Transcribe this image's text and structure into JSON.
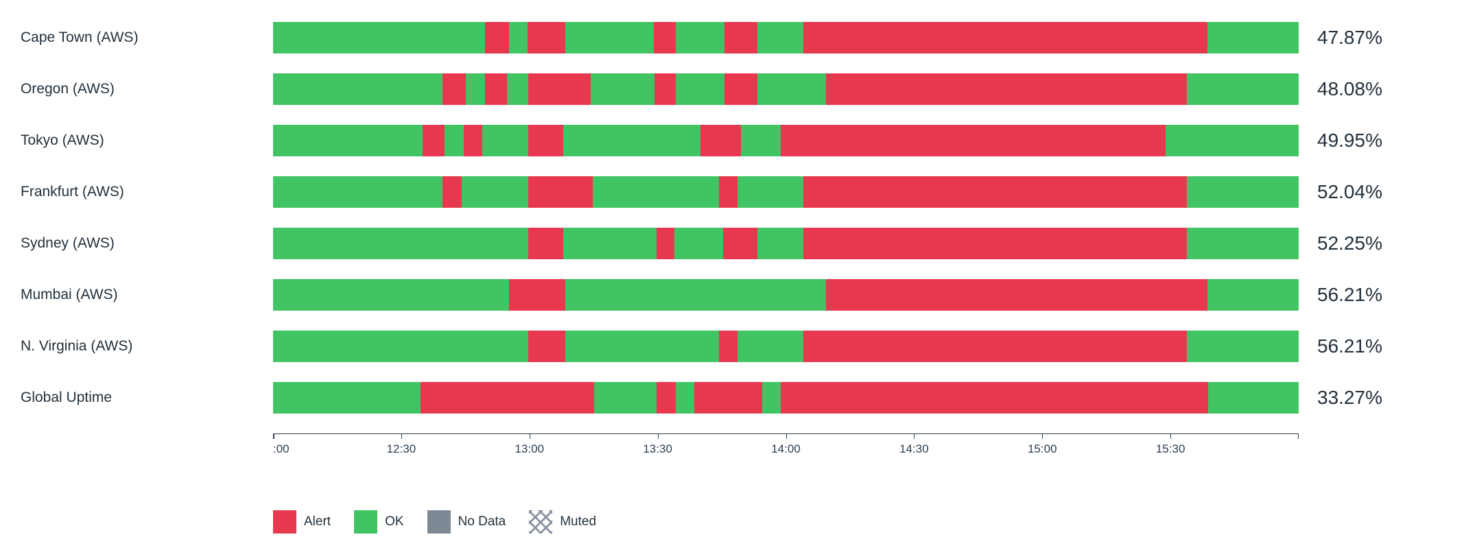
{
  "page": {
    "background": "#ffffff"
  },
  "chart_data": {
    "type": "bar",
    "variant": "horizontal-status-timeline",
    "title": "",
    "x_axis": {
      "start": "12:00",
      "end": "16:00",
      "ticks": [
        {
          "label": ":00",
          "pos_pct": 0
        },
        {
          "label": "12:30",
          "pos_pct": 12.5
        },
        {
          "label": "13:00",
          "pos_pct": 25
        },
        {
          "label": "13:30",
          "pos_pct": 37.5
        },
        {
          "label": "14:00",
          "pos_pct": 50
        },
        {
          "label": "14:30",
          "pos_pct": 62.5
        },
        {
          "label": "15:00",
          "pos_pct": 75
        },
        {
          "label": "15:30",
          "pos_pct": 87.5
        },
        {
          "label": "",
          "pos_pct": 100
        }
      ]
    },
    "rows": [
      {
        "label": "Cape Town (AWS)",
        "uptime": "47.87%",
        "segments": [
          {
            "status": "ok",
            "width_pct": 20.7
          },
          {
            "status": "alert",
            "width_pct": 2.3
          },
          {
            "status": "ok",
            "width_pct": 1.8
          },
          {
            "status": "alert",
            "width_pct": 3.7
          },
          {
            "status": "ok",
            "width_pct": 8.6
          },
          {
            "status": "alert",
            "width_pct": 2.2
          },
          {
            "status": "ok",
            "width_pct": 4.7
          },
          {
            "status": "alert",
            "width_pct": 3.2
          },
          {
            "status": "ok",
            "width_pct": 4.5
          },
          {
            "status": "alert",
            "width_pct": 39.4
          },
          {
            "status": "ok",
            "width_pct": 8.9
          }
        ]
      },
      {
        "label": "Oregon (AWS)",
        "uptime": "48.08%",
        "segments": [
          {
            "status": "ok",
            "width_pct": 16.5
          },
          {
            "status": "alert",
            "width_pct": 2.3
          },
          {
            "status": "ok",
            "width_pct": 1.9
          },
          {
            "status": "alert",
            "width_pct": 2.1
          },
          {
            "status": "ok",
            "width_pct": 2.1
          },
          {
            "status": "alert",
            "width_pct": 6.1
          },
          {
            "status": "ok",
            "width_pct": 6.2
          },
          {
            "status": "alert",
            "width_pct": 2.1
          },
          {
            "status": "ok",
            "width_pct": 4.7
          },
          {
            "status": "alert",
            "width_pct": 3.2
          },
          {
            "status": "ok",
            "width_pct": 6.7
          },
          {
            "status": "alert",
            "width_pct": 35.2
          },
          {
            "status": "ok",
            "width_pct": 10.9
          }
        ]
      },
      {
        "label": "Tokyo (AWS)",
        "uptime": "49.95%",
        "segments": [
          {
            "status": "ok",
            "width_pct": 14.6
          },
          {
            "status": "alert",
            "width_pct": 2.1
          },
          {
            "status": "ok",
            "width_pct": 1.9
          },
          {
            "status": "alert",
            "width_pct": 1.8
          },
          {
            "status": "ok",
            "width_pct": 4.5
          },
          {
            "status": "alert",
            "width_pct": 3.4
          },
          {
            "status": "ok",
            "width_pct": 13.4
          },
          {
            "status": "alert",
            "width_pct": 3.9
          },
          {
            "status": "ok",
            "width_pct": 3.9
          },
          {
            "status": "alert",
            "width_pct": 37.5
          },
          {
            "status": "ok",
            "width_pct": 13.0
          }
        ]
      },
      {
        "label": "Frankfurt (AWS)",
        "uptime": "52.04%",
        "segments": [
          {
            "status": "ok",
            "width_pct": 16.5
          },
          {
            "status": "alert",
            "width_pct": 1.9
          },
          {
            "status": "ok",
            "width_pct": 6.5
          },
          {
            "status": "alert",
            "width_pct": 6.3
          },
          {
            "status": "ok",
            "width_pct": 12.3
          },
          {
            "status": "alert",
            "width_pct": 1.8
          },
          {
            "status": "ok",
            "width_pct": 6.4
          },
          {
            "status": "alert",
            "width_pct": 37.4
          },
          {
            "status": "ok",
            "width_pct": 10.9
          }
        ]
      },
      {
        "label": "Sydney (AWS)",
        "uptime": "52.25%",
        "segments": [
          {
            "status": "ok",
            "width_pct": 24.9
          },
          {
            "status": "alert",
            "width_pct": 3.4
          },
          {
            "status": "ok",
            "width_pct": 9.1
          },
          {
            "status": "alert",
            "width_pct": 1.7
          },
          {
            "status": "ok",
            "width_pct": 4.8
          },
          {
            "status": "alert",
            "width_pct": 3.3
          },
          {
            "status": "ok",
            "width_pct": 4.5
          },
          {
            "status": "alert",
            "width_pct": 37.4
          },
          {
            "status": "ok",
            "width_pct": 10.9
          }
        ]
      },
      {
        "label": "Mumbai (AWS)",
        "uptime": "56.21%",
        "segments": [
          {
            "status": "ok",
            "width_pct": 23.0
          },
          {
            "status": "alert",
            "width_pct": 5.5
          },
          {
            "status": "ok",
            "width_pct": 25.4
          },
          {
            "status": "alert",
            "width_pct": 37.2
          },
          {
            "status": "ok",
            "width_pct": 8.9
          }
        ]
      },
      {
        "label": "N. Virginia (AWS)",
        "uptime": "56.21%",
        "segments": [
          {
            "status": "ok",
            "width_pct": 24.9
          },
          {
            "status": "alert",
            "width_pct": 3.6
          },
          {
            "status": "ok",
            "width_pct": 15.0
          },
          {
            "status": "alert",
            "width_pct": 1.8
          },
          {
            "status": "ok",
            "width_pct": 6.4
          },
          {
            "status": "alert",
            "width_pct": 37.4
          },
          {
            "status": "ok",
            "width_pct": 10.9
          }
        ]
      },
      {
        "label": "Global Uptime",
        "uptime": "33.27%",
        "segments": [
          {
            "status": "ok",
            "width_pct": 14.4
          },
          {
            "status": "alert",
            "width_pct": 16.9
          },
          {
            "status": "ok",
            "width_pct": 6.1
          },
          {
            "status": "alert",
            "width_pct": 1.9
          },
          {
            "status": "ok",
            "width_pct": 1.8
          },
          {
            "status": "alert",
            "width_pct": 6.6
          },
          {
            "status": "ok",
            "width_pct": 1.8
          },
          {
            "status": "alert",
            "width_pct": 41.7
          },
          {
            "status": "ok",
            "width_pct": 8.8
          }
        ]
      }
    ],
    "legend": [
      {
        "label": "Alert",
        "status": "alert"
      },
      {
        "label": "OK",
        "status": "ok"
      },
      {
        "label": "No Data",
        "status": "no_data"
      },
      {
        "label": "Muted",
        "status": "muted"
      }
    ],
    "colors": {
      "alert": "#e8384f",
      "ok": "#41c464",
      "no_data": "#7f8995",
      "muted_hatch": "#8a93a0",
      "text": "#22303c",
      "axis": "#2c3e50"
    },
    "layout": {
      "legend_position": "bottom-left",
      "grid": false
    }
  }
}
